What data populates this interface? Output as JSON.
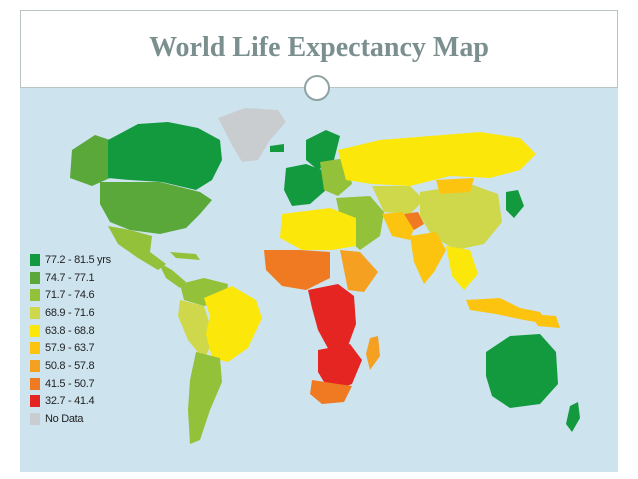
{
  "title": "World Life Expectancy Map",
  "legend": {
    "items": [
      {
        "label": "77.2 - 81.5 yrs",
        "color": "#139a3e"
      },
      {
        "label": "74.7 - 77.1",
        "color": "#5aa83a"
      },
      {
        "label": "71.7 - 74.6",
        "color": "#93c13a"
      },
      {
        "label": "68.9 - 71.6",
        "color": "#cfd84a"
      },
      {
        "label": "63.8 - 68.8",
        "color": "#fbe80a"
      },
      {
        "label": "57.9 - 63.7",
        "color": "#fcc30f"
      },
      {
        "label": "50.8 - 57.8",
        "color": "#f6a021"
      },
      {
        "label": "41.5 - 50.7",
        "color": "#ef7a22"
      },
      {
        "label": "32.7 - 41.4",
        "color": "#e52522"
      },
      {
        "label": "No Data",
        "color": "#c9cdd0"
      }
    ]
  },
  "colors": {
    "ocean": "#cde3ee",
    "title": "#7b8f8f",
    "frame": "#b9c4c4"
  }
}
